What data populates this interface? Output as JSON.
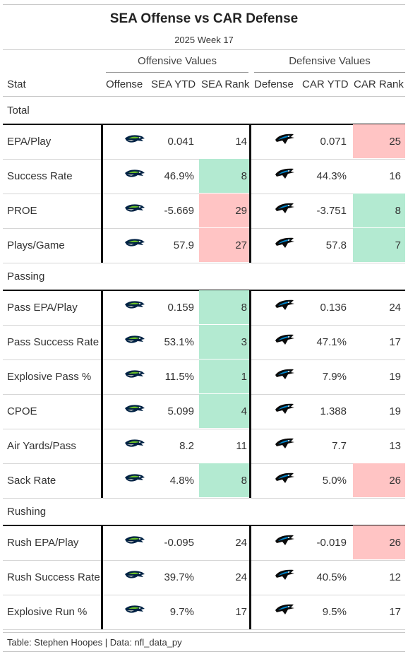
{
  "title": "SEA Offense vs CAR Defense",
  "subtitle": "2025 Week 17",
  "spanners": {
    "offense": "Offensive Values",
    "defense": "Defensive Values"
  },
  "columns": [
    "Stat",
    "Offense",
    "SEA YTD",
    "SEA Rank",
    "Defense",
    "CAR YTD",
    "CAR Rank"
  ],
  "colors": {
    "good": "#b3ead1",
    "bad": "#ffc4c4",
    "divider": "#111111"
  },
  "icons": {
    "offense": "seahawks-logo-icon",
    "defense": "panthers-logo-icon"
  },
  "groups": [
    {
      "label": "Total",
      "rows": [
        {
          "stat": "EPA/Play",
          "sea_ytd": "0.041",
          "sea_rank": "14",
          "sea_hl": "",
          "car_ytd": "0.071",
          "car_rank": "25",
          "car_hl": "bad"
        },
        {
          "stat": "Success Rate",
          "sea_ytd": "46.9%",
          "sea_rank": "8",
          "sea_hl": "good",
          "car_ytd": "44.3%",
          "car_rank": "16",
          "car_hl": ""
        },
        {
          "stat": "PROE",
          "sea_ytd": "-5.669",
          "sea_rank": "29",
          "sea_hl": "bad",
          "car_ytd": "-3.751",
          "car_rank": "8",
          "car_hl": "good"
        },
        {
          "stat": "Plays/Game",
          "sea_ytd": "57.9",
          "sea_rank": "27",
          "sea_hl": "bad",
          "car_ytd": "57.8",
          "car_rank": "7",
          "car_hl": "good"
        }
      ]
    },
    {
      "label": "Passing",
      "rows": [
        {
          "stat": "Pass EPA/Play",
          "sea_ytd": "0.159",
          "sea_rank": "8",
          "sea_hl": "good",
          "car_ytd": "0.136",
          "car_rank": "24",
          "car_hl": ""
        },
        {
          "stat": "Pass Success Rate",
          "sea_ytd": "53.1%",
          "sea_rank": "3",
          "sea_hl": "good",
          "car_ytd": "47.1%",
          "car_rank": "17",
          "car_hl": ""
        },
        {
          "stat": "Explosive Pass %",
          "sea_ytd": "11.5%",
          "sea_rank": "1",
          "sea_hl": "good",
          "car_ytd": "7.9%",
          "car_rank": "19",
          "car_hl": ""
        },
        {
          "stat": "CPOE",
          "sea_ytd": "5.099",
          "sea_rank": "4",
          "sea_hl": "good",
          "car_ytd": "1.388",
          "car_rank": "19",
          "car_hl": ""
        },
        {
          "stat": "Air Yards/Pass",
          "sea_ytd": "8.2",
          "sea_rank": "11",
          "sea_hl": "",
          "car_ytd": "7.7",
          "car_rank": "13",
          "car_hl": ""
        },
        {
          "stat": "Sack Rate",
          "sea_ytd": "4.8%",
          "sea_rank": "8",
          "sea_hl": "good",
          "car_ytd": "5.0%",
          "car_rank": "26",
          "car_hl": "bad"
        }
      ]
    },
    {
      "label": "Rushing",
      "rows": [
        {
          "stat": "Rush EPA/Play",
          "sea_ytd": "-0.095",
          "sea_rank": "24",
          "sea_hl": "",
          "car_ytd": "-0.019",
          "car_rank": "26",
          "car_hl": "bad"
        },
        {
          "stat": "Rush Success Rate",
          "sea_ytd": "39.7%",
          "sea_rank": "24",
          "sea_hl": "",
          "car_ytd": "40.5%",
          "car_rank": "12",
          "car_hl": ""
        },
        {
          "stat": "Explosive Run %",
          "sea_ytd": "9.7%",
          "sea_rank": "17",
          "sea_hl": "",
          "car_ytd": "9.5%",
          "car_rank": "17",
          "car_hl": ""
        }
      ]
    }
  ],
  "footer": "Table: Stephen Hoopes | Data: nfl_data_py"
}
